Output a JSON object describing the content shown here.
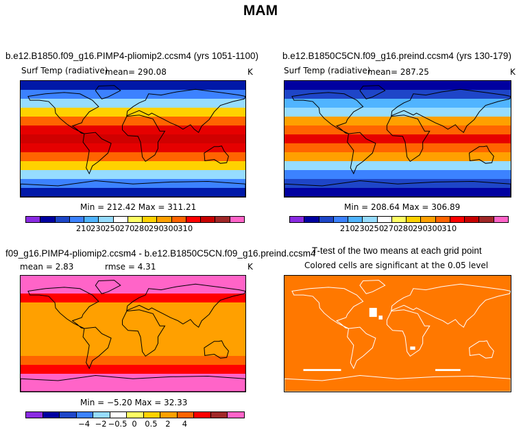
{
  "page": {
    "title": "MAM"
  },
  "chart_data": [
    {
      "type": "heatmap",
      "title": "b.e12.B1850.f09_g16.PIMP4-pliomip2.ccsm4 (yrs 1051-1100)",
      "variable": "Surf Temp (radiative)",
      "mean_label": "mean= 290.08",
      "units": "K",
      "minmax": "Min = 212.42 Max = 311.21",
      "colorbar_ticks": [
        "210",
        "230",
        "250",
        "270",
        "280",
        "290",
        "300",
        "310"
      ],
      "colorbar_colors": [
        "#8a2be2",
        "#0000a0",
        "#1e46c8",
        "#3c82ff",
        "#50b4ff",
        "#96dcff",
        "#ffffff",
        "#ffff64",
        "#ffd200",
        "#ffa000",
        "#ff6400",
        "#ff0000",
        "#c80000",
        "#a02828",
        "#ff64c8"
      ],
      "zone_colors": [
        "#0018a8",
        "#3c82ff",
        "#96dcff",
        "#ffd200",
        "#ff6400",
        "#e60000",
        "#d00000",
        "#e60000",
        "#ff6400",
        "#ffd200",
        "#96dcff",
        "#3c82ff",
        "#0018a8"
      ]
    },
    {
      "type": "heatmap",
      "title": "b.e12.B1850C5CN.f09_g16.preind.ccsm4 (yrs 130-179)",
      "variable": "Surf Temp (radiative)",
      "mean_label": "mean= 287.25",
      "units": "K",
      "minmax": "Min = 208.64 Max = 306.89",
      "colorbar_ticks": [
        "210",
        "230",
        "250",
        "270",
        "280",
        "290",
        "300",
        "310"
      ],
      "colorbar_colors": [
        "#8a2be2",
        "#0000a0",
        "#1e46c8",
        "#3c82ff",
        "#50b4ff",
        "#96dcff",
        "#ffffff",
        "#ffff64",
        "#ffd200",
        "#ffa000",
        "#ff6400",
        "#ff0000",
        "#c80000",
        "#a02828",
        "#ff64c8"
      ],
      "zone_colors": [
        "#0000a0",
        "#1e46c8",
        "#50b4ff",
        "#96dcff",
        "#ffa000",
        "#ff6400",
        "#e60000",
        "#ff6400",
        "#ffa000",
        "#96dcff",
        "#3c82ff",
        "#1e46c8",
        "#0000a0"
      ]
    },
    {
      "type": "heatmap",
      "title": "f09_g16.PIMP4-pliomip2.ccsm4 - b.e12.B1850C5CN.f09_g16.preind.ccsm4",
      "mean_label": "mean =    2.83",
      "rmse_label": "rmse =    4.31",
      "units": "K",
      "minmax": "Min =  −5.20 Max =  32.33",
      "colorbar_ticks": [
        "−4",
        "−2",
        "−0.5",
        "0",
        "0.5",
        "2",
        "4"
      ],
      "colorbar_colors": [
        "#8a2be2",
        "#0000a0",
        "#1e46c8",
        "#3c82ff",
        "#96dcff",
        "#ffffff",
        "#ffff64",
        "#ffd200",
        "#ffa000",
        "#ff6400",
        "#ff0000",
        "#a02828",
        "#ff64c8"
      ],
      "zone_colors": [
        "#ff64c8",
        "#ff64c8",
        "#ff0000",
        "#ffa000",
        "#ffa000",
        "#ffa000",
        "#ffa000",
        "#ffa000",
        "#ffa000",
        "#ff6400",
        "#ff0000",
        "#ff64c8",
        "#ff64c8"
      ]
    },
    {
      "type": "heatmap",
      "title": "T-test of the two means at each grid point",
      "subtitle": "Colored cells are significant at the 0.05 level",
      "fill_color": "#ff7800"
    }
  ]
}
